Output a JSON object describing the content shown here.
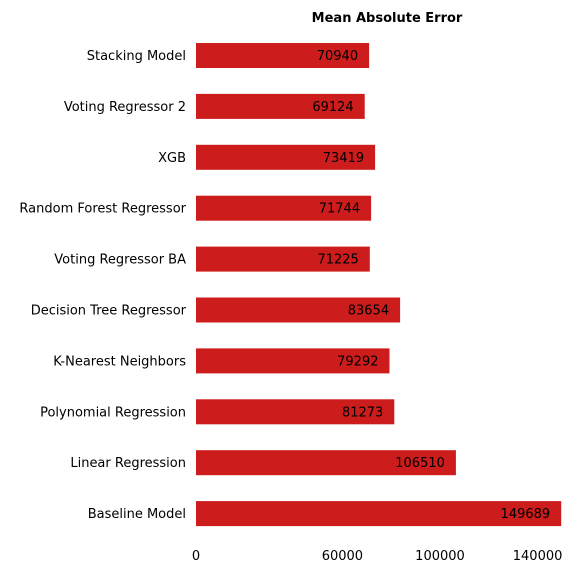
{
  "chart_data": {
    "type": "bar",
    "orientation": "horizontal",
    "title": "Mean Absolute Error",
    "xlabel": "",
    "ylabel": "",
    "categories": [
      "Stacking Model",
      "Voting Regressor 2",
      "XGB",
      "Random Forest Regressor",
      "Voting Regressor BA",
      "Decision Tree Regressor",
      "K-Nearest Neighbors",
      "Polynomial Regression",
      "Linear Regression",
      "Baseline Model"
    ],
    "values": [
      70940,
      69124,
      73419,
      71744,
      71225,
      83654,
      79292,
      81273,
      106510,
      149689
    ],
    "value_labels": [
      "70940",
      "69124",
      "73419",
      "71744",
      "71225",
      "83654",
      "79292",
      "81273",
      "106510",
      "149689"
    ],
    "xticks": [
      0,
      60000,
      100000,
      140000
    ],
    "xtick_labels": [
      "0",
      "60000",
      "100000",
      "140000"
    ],
    "xlim": [
      0,
      150000
    ],
    "grid": false,
    "bar_color": "#cc1c1c"
  }
}
